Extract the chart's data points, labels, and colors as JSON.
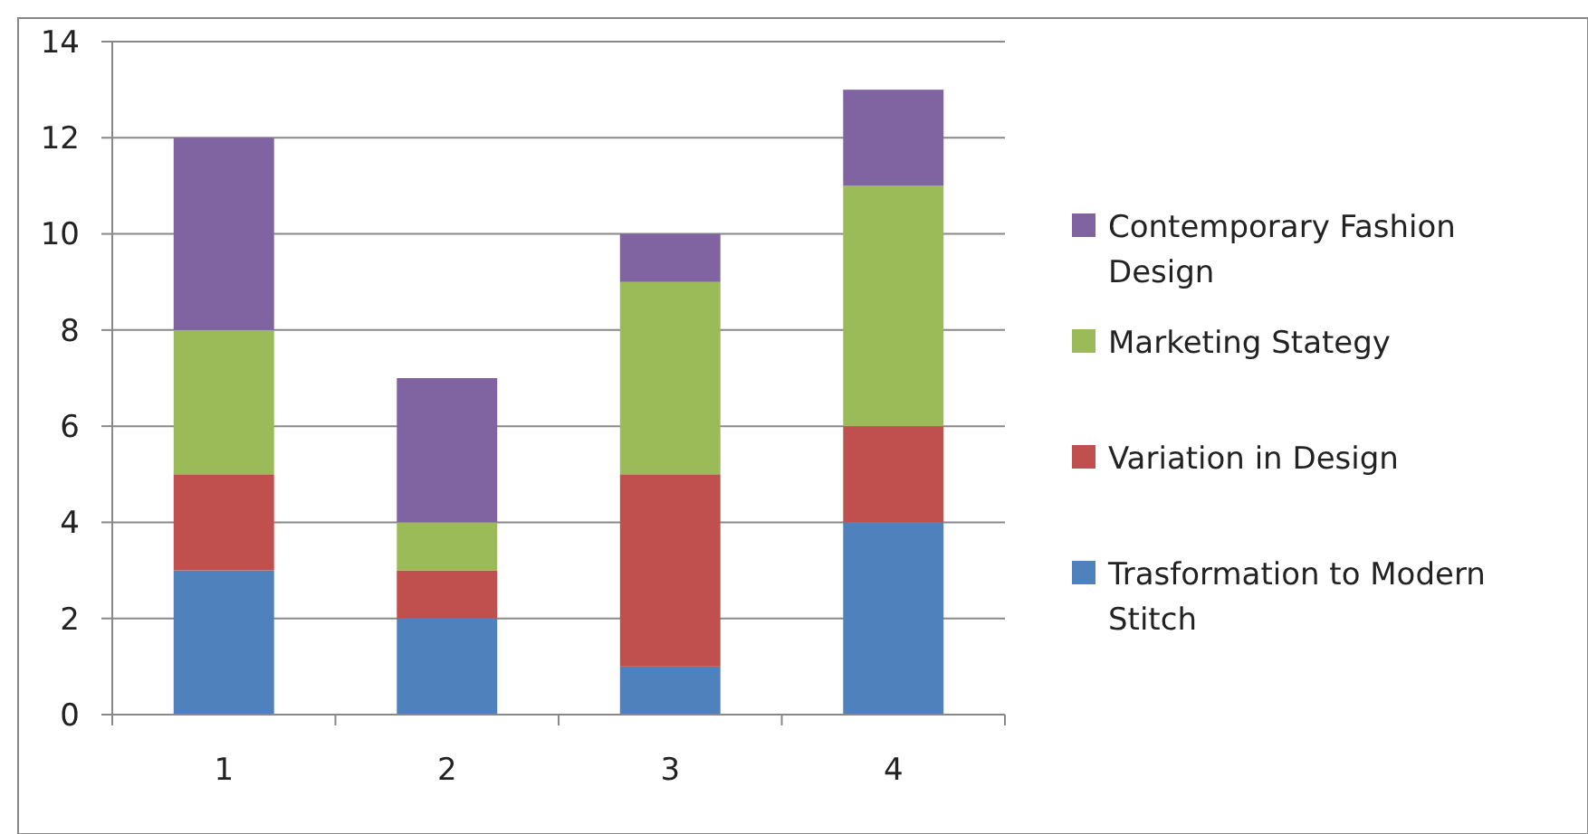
{
  "chart_data": {
    "type": "bar",
    "stacked": true,
    "categories": [
      "1",
      "2",
      "3",
      "4"
    ],
    "series": [
      {
        "name": "Trasformation to Modern Stitch",
        "color": "#4f81bd",
        "values": [
          3,
          2,
          1,
          4
        ]
      },
      {
        "name": "Variation in Design",
        "color": "#c0504d",
        "values": [
          2,
          1,
          4,
          2
        ]
      },
      {
        "name": "Marketing Stategy",
        "color": "#9bbb59",
        "values": [
          3,
          1,
          4,
          5
        ]
      },
      {
        "name": "Contemporary Fashion Design",
        "color": "#8064a2",
        "values": [
          4,
          3,
          1,
          2
        ]
      }
    ],
    "ylim": [
      0,
      14
    ],
    "yticks": [
      0,
      2,
      4,
      6,
      8,
      10,
      12,
      14
    ],
    "grid": "y",
    "legend": "right"
  }
}
